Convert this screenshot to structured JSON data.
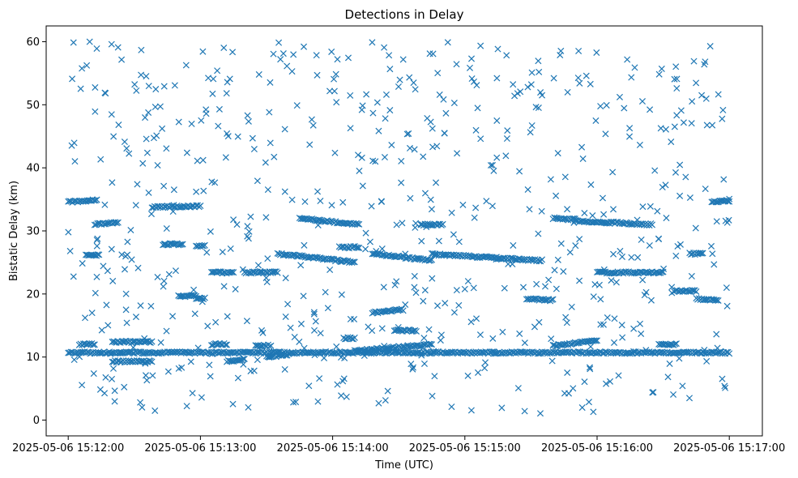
{
  "chart_data": {
    "type": "scatter",
    "title": "Detections in Delay",
    "xlabel": "Time (UTC)",
    "ylabel": "Bistatic Delay (km)",
    "marker": "x",
    "color": "#1f77b4",
    "grid": false,
    "legend": "none",
    "xlim": [
      "2025-05-06 15:11:50",
      "2025-05-06 15:17:15"
    ],
    "ylim": [
      -2.5,
      62.5
    ],
    "xticks": [
      "2025-05-06 15:12:00",
      "2025-05-06 15:13:00",
      "2025-05-06 15:14:00",
      "2025-05-06 15:15:00",
      "2025-05-06 15:16:00",
      "2025-05-06 15:17:00"
    ],
    "yticks": [
      0,
      10,
      20,
      30,
      40,
      50,
      60
    ],
    "start": "2025-05-06 15:12:00",
    "end": "2025-05-06 15:17:00",
    "tracks": [
      {
        "from": "2025-05-06 15:12:00",
        "to": "2025-05-06 15:17:00",
        "delay_start": 10.7,
        "delay_end": 10.7
      },
      {
        "from": "2025-05-06 15:12:00",
        "to": "2025-05-06 15:12:13",
        "delay_start": 34.6,
        "delay_end": 34.9
      },
      {
        "from": "2025-05-06 15:12:08",
        "to": "2025-05-06 15:12:14",
        "delay_start": 26.2,
        "delay_end": 26.2
      },
      {
        "from": "2025-05-06 15:12:05",
        "to": "2025-05-06 15:12:12",
        "delay_start": 12.0,
        "delay_end": 12.0
      },
      {
        "from": "2025-05-06 15:12:12",
        "to": "2025-05-06 15:12:22",
        "delay_start": 31.0,
        "delay_end": 31.4
      },
      {
        "from": "2025-05-06 15:12:20",
        "to": "2025-05-06 15:12:38",
        "delay_start": 12.4,
        "delay_end": 12.4
      },
      {
        "from": "2025-05-06 15:12:20",
        "to": "2025-05-06 15:12:38",
        "delay_start": 9.3,
        "delay_end": 9.3
      },
      {
        "from": "2025-05-06 15:12:38",
        "to": "2025-05-06 15:13:00",
        "delay_start": 33.8,
        "delay_end": 33.9
      },
      {
        "from": "2025-05-06 15:12:43",
        "to": "2025-05-06 15:12:52",
        "delay_start": 27.9,
        "delay_end": 27.9
      },
      {
        "from": "2025-05-06 15:12:58",
        "to": "2025-05-06 15:13:02",
        "delay_start": 27.6,
        "delay_end": 27.6
      },
      {
        "from": "2025-05-06 15:12:50",
        "to": "2025-05-06 15:12:58",
        "delay_start": 19.7,
        "delay_end": 19.7
      },
      {
        "from": "2025-05-06 15:12:58",
        "to": "2025-05-06 15:13:02",
        "delay_start": 19.3,
        "delay_end": 19.3
      },
      {
        "from": "2025-05-06 15:13:05",
        "to": "2025-05-06 15:13:12",
        "delay_start": 12.0,
        "delay_end": 12.0
      },
      {
        "from": "2025-05-06 15:13:12",
        "to": "2025-05-06 15:13:20",
        "delay_start": 9.3,
        "delay_end": 9.7
      },
      {
        "from": "2025-05-06 15:13:05",
        "to": "2025-05-06 15:13:15",
        "delay_start": 23.4,
        "delay_end": 23.4
      },
      {
        "from": "2025-05-06 15:13:20",
        "to": "2025-05-06 15:13:35",
        "delay_start": 23.4,
        "delay_end": 23.4
      },
      {
        "from": "2025-05-06 15:13:25",
        "to": "2025-05-06 15:13:32",
        "delay_start": 11.8,
        "delay_end": 11.8
      },
      {
        "from": "2025-05-06 15:13:30",
        "to": "2025-05-06 15:13:40",
        "delay_start": 10.0,
        "delay_end": 10.4
      },
      {
        "from": "2025-05-06 15:13:35",
        "to": "2025-05-06 15:14:10",
        "delay_start": 26.4,
        "delay_end": 25.0
      },
      {
        "from": "2025-05-06 15:13:45",
        "to": "2025-05-06 15:14:12",
        "delay_start": 32.0,
        "delay_end": 31.0
      },
      {
        "from": "2025-05-06 15:14:03",
        "to": "2025-05-06 15:14:12",
        "delay_start": 27.4,
        "delay_end": 27.4
      },
      {
        "from": "2025-05-06 15:14:05",
        "to": "2025-05-06 15:14:10",
        "delay_start": 13.0,
        "delay_end": 13.0
      },
      {
        "from": "2025-05-06 15:14:18",
        "to": "2025-05-06 15:14:45",
        "delay_start": 26.4,
        "delay_end": 25.3
      },
      {
        "from": "2025-05-06 15:14:18",
        "to": "2025-05-06 15:14:32",
        "delay_start": 17.0,
        "delay_end": 17.5
      },
      {
        "from": "2025-05-06 15:14:10",
        "to": "2025-05-06 15:14:45",
        "delay_start": 11.0,
        "delay_end": 12.0
      },
      {
        "from": "2025-05-06 15:14:28",
        "to": "2025-05-06 15:14:38",
        "delay_start": 14.2,
        "delay_end": 14.2
      },
      {
        "from": "2025-05-06 15:14:40",
        "to": "2025-05-06 15:14:50",
        "delay_start": 31.0,
        "delay_end": 31.0
      },
      {
        "from": "2025-05-06 15:14:45",
        "to": "2025-05-06 15:15:35",
        "delay_start": 26.3,
        "delay_end": 25.3
      },
      {
        "from": "2025-05-06 15:15:28",
        "to": "2025-05-06 15:15:40",
        "delay_start": 19.2,
        "delay_end": 19.0
      },
      {
        "from": "2025-05-06 15:15:40",
        "to": "2025-05-06 15:16:00",
        "delay_start": 11.8,
        "delay_end": 12.6
      },
      {
        "from": "2025-05-06 15:15:40",
        "to": "2025-05-06 15:15:50",
        "delay_start": 32.0,
        "delay_end": 31.8
      },
      {
        "from": "2025-05-06 15:15:50",
        "to": "2025-05-06 15:16:25",
        "delay_start": 31.6,
        "delay_end": 31.0
      },
      {
        "from": "2025-05-06 15:16:00",
        "to": "2025-05-06 15:16:30",
        "delay_start": 23.4,
        "delay_end": 23.4
      },
      {
        "from": "2025-05-06 15:16:28",
        "to": "2025-05-06 15:16:36",
        "delay_start": 12.0,
        "delay_end": 12.0
      },
      {
        "from": "2025-05-06 15:16:35",
        "to": "2025-05-06 15:16:45",
        "delay_start": 20.5,
        "delay_end": 20.5
      },
      {
        "from": "2025-05-06 15:16:45",
        "to": "2025-05-06 15:16:55",
        "delay_start": 19.2,
        "delay_end": 19.0
      },
      {
        "from": "2025-05-06 15:16:52",
        "to": "2025-05-06 15:17:00",
        "delay_start": 34.5,
        "delay_end": 34.8
      },
      {
        "from": "2025-05-06 15:16:42",
        "to": "2025-05-06 15:16:48",
        "delay_start": 26.4,
        "delay_end": 26.4
      }
    ],
    "scattered_points": 650
  }
}
